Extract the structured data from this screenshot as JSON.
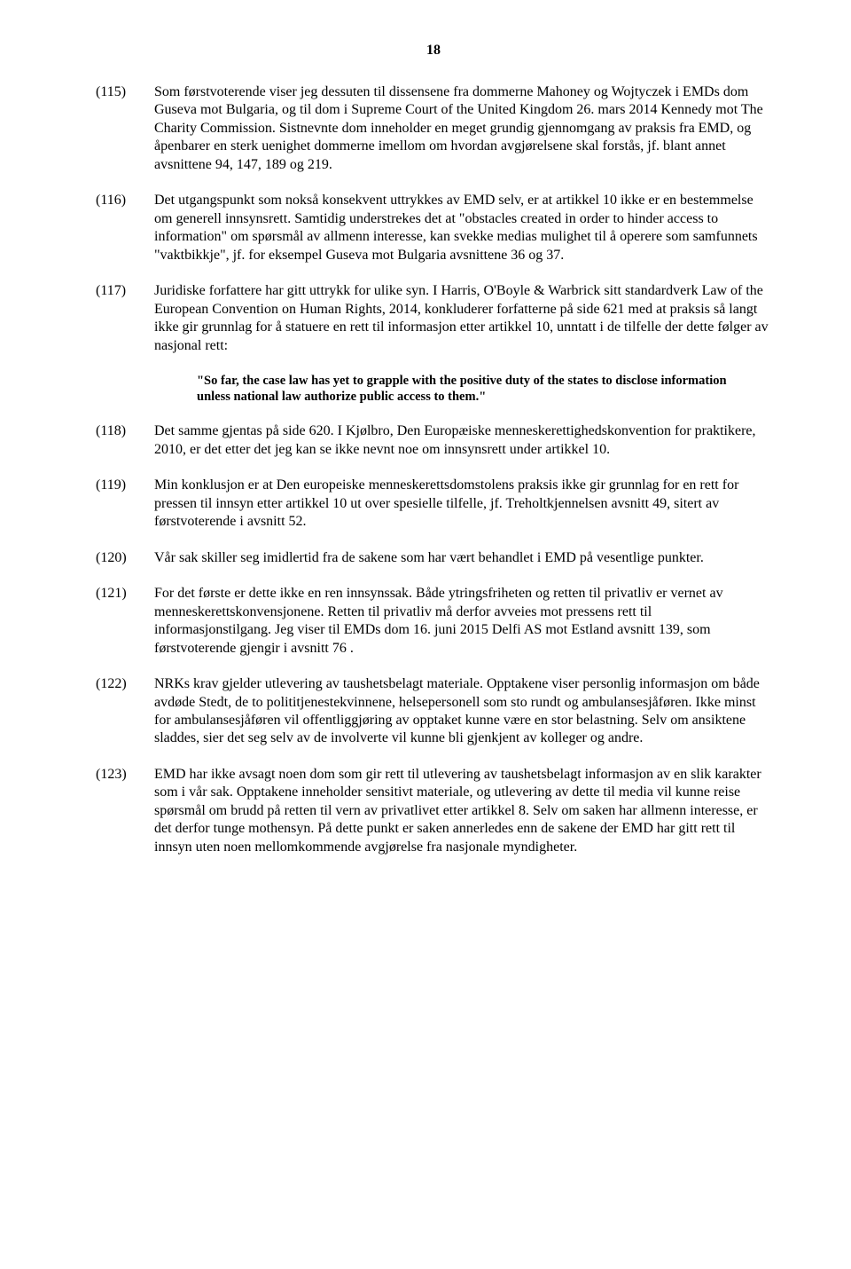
{
  "pageNumber": "18",
  "paras": [
    {
      "num": "(115)",
      "text": "Som førstvoterende viser jeg dessuten til dissensene fra dommerne Mahoney og Wojtyczek i EMDs dom Guseva mot Bulgaria, og til dom i Supreme Court of     the United Kingdom 26. mars 2014 Kennedy mot The Charity Commission. Sistnevnte dom inneholder en meget grundig gjennomgang av praksis fra EMD, og åpenbarer en sterk uenighet dommerne imellom om hvordan avgjørelsene skal forstås, jf. blant annet avsnittene 94, 147, 189 og 219."
    },
    {
      "num": "(116)",
      "text": "Det utgangspunkt som nokså konsekvent uttrykkes av EMD selv, er at artikkel 10 ikke er en bestemmelse om generell innsynsrett. Samtidig understrekes det at \"obstacles created in order to hinder access to information\" om spørsmål av allmenn interesse, kan svekke medias mulighet til å operere som samfunnets \"vaktbikkje\", jf. for eksempel Guseva mot Bulgaria avsnittene 36 og 37."
    },
    {
      "num": "(117)",
      "text": "Juridiske forfattere har gitt uttrykk for ulike syn. I Harris, O'Boyle & Warbrick sitt standardverk Law of the European Convention on Human Rights, 2014, konkluderer forfatterne på side 621 med at praksis så langt ikke gir grunnlag for å statuere en rett til informasjon etter artikkel 10, unntatt i de tilfelle der dette følger av nasjonal rett:"
    }
  ],
  "quote": "\"So far, the case law has yet to grapple with the positive duty of the states to disclose information unless national law authorize public access to them.\"",
  "paras2": [
    {
      "num": "(118)",
      "text": "Det samme gjentas på side 620. I Kjølbro, Den Europæiske menneskerettighedskonvention for praktikere, 2010, er det etter det jeg kan se ikke nevnt noe om innsynsrett under artikkel 10."
    },
    {
      "num": "(119)",
      "text": "Min konklusjon er at Den europeiske menneskerettsdomstolens praksis ikke gir grunnlag for en rett for pressen til innsyn etter artikkel 10 ut over spesielle tilfelle, jf. Treholtkjennelsen avsnitt 49, sitert av førstvoterende i avsnitt 52."
    },
    {
      "num": "(120)",
      "text": "Vår sak skiller seg imidlertid fra de sakene som har vært behandlet i EMD på vesentlige punkter."
    },
    {
      "num": "(121)",
      "text": "For det første er dette ikke en ren innsynssak. Både ytringsfriheten og retten til privatliv er vernet av menneskerettskonvensjonene. Retten til privatliv må derfor avveies mot pressens rett til informasjonstilgang. Jeg viser til EMDs dom 16. juni 2015 Delfi AS mot Estland avsnitt 139, som førstvoterende gjengir i avsnitt 76 ."
    },
    {
      "num": "(122)",
      "text": "NRKs krav gjelder utlevering av taushetsbelagt materiale. Opptakene viser personlig informasjon om både avdøde Stedt, de to polititjenestekvinnene, helsepersonell som sto rundt og ambulansesjåføren. Ikke minst for ambulansesjåføren vil offentliggjøring av opptaket kunne være en stor belastning. Selv om ansiktene sladdes, sier det seg selv av de involverte vil kunne bli gjenkjent av kolleger og andre."
    },
    {
      "num": "(123)",
      "text": "EMD har ikke avsagt noen dom som gir rett til utlevering av taushetsbelagt informasjon av en slik karakter som i vår sak. Opptakene inneholder sensitivt materiale, og utlevering av dette til media vil kunne reise spørsmål om brudd på retten til vern av privatlivet etter artikkel 8. Selv om saken har allmenn interesse, er det derfor tunge mothensyn. På dette punkt er saken annerledes enn de sakene der EMD har gitt rett til innsyn uten noen mellomkommende avgjørelse fra nasjonale myndigheter."
    }
  ]
}
